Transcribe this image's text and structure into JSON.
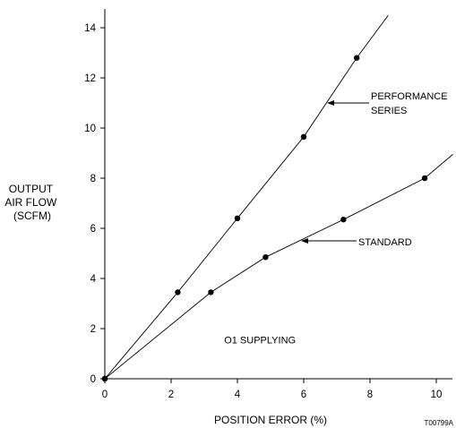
{
  "chart_data": {
    "type": "line",
    "xlabel": "POSITION ERROR (%)",
    "ylabel_lines": [
      "OUTPUT",
      "AIR FLOW",
      "(SCFM)"
    ],
    "xlim": [
      0,
      10.5
    ],
    "ylim": [
      0,
      14.6
    ],
    "x_ticks": [
      0,
      2,
      4,
      6,
      8,
      10
    ],
    "y_ticks": [
      0,
      2,
      4,
      6,
      8,
      10,
      12,
      14
    ],
    "grid": false,
    "series": [
      {
        "name": "PERFORMANCE SERIES",
        "label_lines": [
          "PERFORMANCE",
          "SERIES"
        ],
        "line_end": [
          8.55,
          14.5
        ],
        "points": [
          {
            "x": 0,
            "y": 0
          },
          {
            "x": 2.2,
            "y": 3.45
          },
          {
            "x": 4.0,
            "y": 6.4
          },
          {
            "x": 6.0,
            "y": 9.65
          },
          {
            "x": 7.6,
            "y": 12.8
          }
        ]
      },
      {
        "name": "STANDARD",
        "label_lines": [
          "STANDARD"
        ],
        "line_end": [
          10.5,
          8.95
        ],
        "points": [
          {
            "x": 0,
            "y": 0
          },
          {
            "x": 3.2,
            "y": 3.45
          },
          {
            "x": 4.85,
            "y": 4.85
          },
          {
            "x": 7.2,
            "y": 6.35
          },
          {
            "x": 9.65,
            "y": 8.0
          }
        ]
      }
    ],
    "annotations": [
      {
        "text": "O1 SUPPLYING",
        "x": 3.6,
        "y": 1.55
      }
    ],
    "figure_id": "T00799A"
  }
}
